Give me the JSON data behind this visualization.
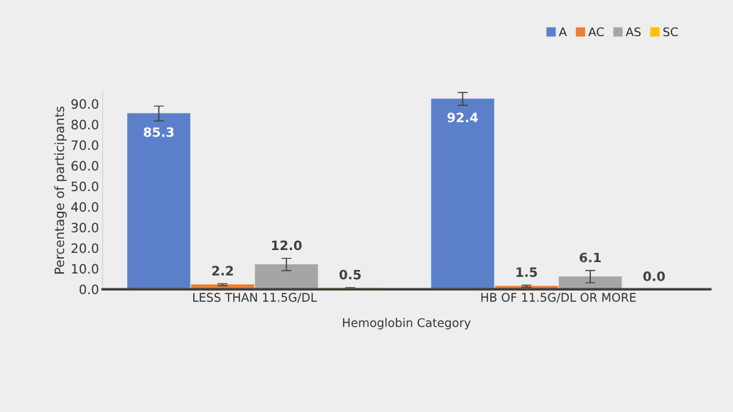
{
  "chart_data": {
    "type": "bar",
    "xlabel": "Hemoglobin Category",
    "ylabel": "Percentage of participants",
    "categories": [
      "LESS THAN 11.5G/DL",
      "HB OF 11.5G/DL OR MORE"
    ],
    "series": [
      {
        "name": "A",
        "color": "#5b7fc9",
        "values": [
          85.3,
          92.4
        ],
        "errors": [
          3.6,
          3.1
        ],
        "value_labels": [
          "85.3",
          "92.4"
        ]
      },
      {
        "name": "AC",
        "color": "#ed7d31",
        "values": [
          2.2,
          1.5
        ],
        "errors": [
          0.5,
          0.5
        ],
        "value_labels": [
          "2.2",
          "1.5"
        ]
      },
      {
        "name": "AS",
        "color": "#a5a5a5",
        "values": [
          12.0,
          6.1
        ],
        "errors": [
          3.0,
          3.0
        ],
        "value_labels": [
          "12.0",
          "6.1"
        ]
      },
      {
        "name": "SC",
        "color": "#ffc000",
        "values": [
          0.5,
          0.0
        ],
        "errors": [
          0.3,
          null
        ],
        "value_labels": [
          "0.5",
          "0.0"
        ]
      }
    ],
    "ylim": [
      0,
      96
    ],
    "yticks": [
      {
        "value": 0,
        "label": "0.0"
      },
      {
        "value": 10,
        "label": "10.0"
      },
      {
        "value": 20,
        "label": "20.0"
      },
      {
        "value": 30,
        "label": "30.0"
      },
      {
        "value": 40,
        "label": "40.0"
      },
      {
        "value": 50,
        "label": "50.0"
      },
      {
        "value": 60,
        "label": "60.0"
      },
      {
        "value": 70,
        "label": "70.0"
      },
      {
        "value": 80,
        "label": "80.0"
      },
      {
        "value": 90,
        "label": "90.0"
      }
    ],
    "legend": "top right",
    "grid": false
  }
}
